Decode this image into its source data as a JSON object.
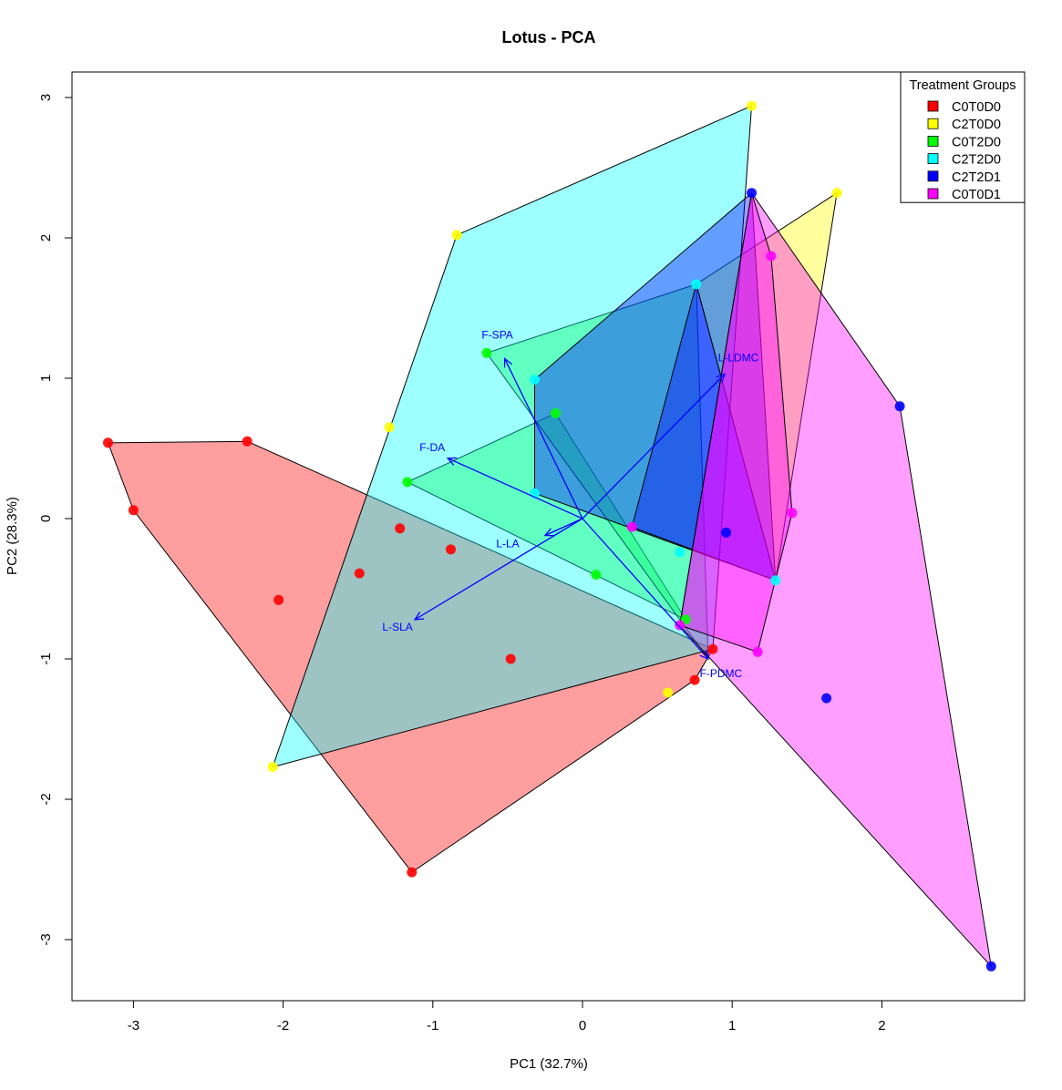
{
  "chart_data": {
    "type": "scatter",
    "title": "Lotus - PCA",
    "xlabel": "PC1 (32.7%)",
    "ylabel": "PC2 (28.3%)",
    "xlim": [
      -3.4,
      2.95
    ],
    "ylim": [
      -3.4,
      3.15
    ],
    "xticks": [
      -3,
      -2,
      -1,
      0,
      1,
      2
    ],
    "yticks": [
      -3,
      -2,
      -1,
      0,
      1,
      2,
      3
    ],
    "xtick_labels": [
      "-3",
      "-2",
      "-1",
      "0",
      "1",
      "2"
    ],
    "ytick_labels": [
      "-3",
      "-2",
      "-1",
      "0",
      "1",
      "2",
      "3"
    ],
    "grid": false,
    "legend": {
      "title": "Treatment Groups",
      "position": "top-right"
    },
    "series": [
      {
        "name": "C0T0D0",
        "color": "#FF0000",
        "points": [
          [
            -3.17,
            0.54
          ],
          [
            -3.0,
            0.06
          ],
          [
            -2.24,
            0.55
          ],
          [
            -2.03,
            -0.58
          ],
          [
            -1.49,
            -0.39
          ],
          [
            -1.22,
            -0.07
          ],
          [
            -1.14,
            -2.52
          ],
          [
            -0.88,
            -0.22
          ],
          [
            -0.48,
            -1.0
          ],
          [
            0.75,
            -1.15
          ],
          [
            0.87,
            -0.93
          ]
        ],
        "hull": [
          [
            -3.17,
            0.54
          ],
          [
            -2.24,
            0.55
          ],
          [
            0.87,
            -0.93
          ],
          [
            0.75,
            -1.15
          ],
          [
            -1.14,
            -2.52
          ],
          [
            -3.0,
            0.06
          ]
        ]
      },
      {
        "name": "C2T0D0",
        "color": "#FFFF00",
        "points": [
          [
            -2.07,
            -1.77
          ],
          [
            -1.29,
            0.65
          ],
          [
            -0.84,
            2.02
          ],
          [
            0.57,
            -1.24
          ],
          [
            1.13,
            2.94
          ],
          [
            1.7,
            2.32
          ]
        ],
        "hull": [
          [
            0.76,
            1.67
          ],
          [
            1.7,
            2.32
          ],
          [
            1.29,
            -0.44
          ]
        ]
      },
      {
        "name": "C0T2D0",
        "color": "#00FF00",
        "points": [
          [
            -1.17,
            0.26
          ],
          [
            -0.64,
            1.18
          ],
          [
            -0.18,
            0.75
          ],
          [
            0.09,
            -0.4
          ],
          [
            0.69,
            -0.72
          ]
        ],
        "hull": [
          [
            -1.17,
            0.26
          ],
          [
            -0.18,
            0.75
          ],
          [
            0.69,
            -0.72
          ]
        ],
        "hull2": [
          [
            -0.64,
            1.18
          ],
          [
            0.76,
            1.67
          ],
          [
            0.84,
            -1.0
          ]
        ]
      },
      {
        "name": "C2T2D0",
        "color": "#00FFFF",
        "points": [
          [
            -0.32,
            0.99
          ],
          [
            -0.32,
            0.18
          ],
          [
            0.65,
            -0.24
          ],
          [
            0.76,
            1.67
          ],
          [
            1.29,
            -0.44
          ]
        ],
        "hull": [
          [
            -0.84,
            2.02
          ],
          [
            1.13,
            2.94
          ],
          [
            0.87,
            -0.93
          ],
          [
            -2.07,
            -1.77
          ]
        ]
      },
      {
        "name": "C2T2D1",
        "color": "#0000FF",
        "points": [
          [
            1.13,
            2.32
          ],
          [
            2.12,
            0.8
          ],
          [
            2.73,
            -3.19
          ],
          [
            1.63,
            -1.28
          ],
          [
            0.96,
            -0.1
          ]
        ],
        "hull": [
          [
            -0.32,
            0.99
          ],
          [
            1.13,
            2.32
          ],
          [
            1.29,
            -0.44
          ],
          [
            -0.32,
            0.18
          ]
        ],
        "hull3": [
          [
            0.76,
            1.67
          ],
          [
            1.29,
            -0.44
          ],
          [
            0.33,
            -0.06
          ]
        ]
      },
      {
        "name": "C0T0D1",
        "color": "#FF00FF",
        "points": [
          [
            1.26,
            1.87
          ],
          [
            1.4,
            0.04
          ],
          [
            1.17,
            -0.95
          ],
          [
            0.65,
            -0.76
          ],
          [
            0.33,
            -0.06
          ]
        ],
        "hull": [
          [
            1.13,
            2.32
          ],
          [
            2.12,
            0.8
          ],
          [
            2.73,
            -3.19
          ],
          [
            0.65,
            -0.76
          ]
        ],
        "hull2": [
          [
            1.13,
            2.32
          ],
          [
            1.26,
            1.87
          ],
          [
            1.4,
            0.04
          ],
          [
            1.17,
            -0.95
          ],
          [
            0.65,
            -0.76
          ]
        ]
      }
    ],
    "loadings": {
      "color": "#0000FF",
      "origin": [
        0,
        0
      ],
      "arrows": [
        {
          "label": "F-SPA",
          "x": -0.52,
          "y": 1.14
        },
        {
          "label": "F-DA",
          "x": -0.9,
          "y": 0.43
        },
        {
          "label": "L-LDMC",
          "x": 0.95,
          "y": 1.03
        },
        {
          "label": "L-LA",
          "x": -0.25,
          "y": -0.12
        },
        {
          "label": "L-SLA",
          "x": -1.12,
          "y": -0.72
        },
        {
          "label": "F-PDMC",
          "x": 0.84,
          "y": -1.0
        }
      ]
    }
  }
}
